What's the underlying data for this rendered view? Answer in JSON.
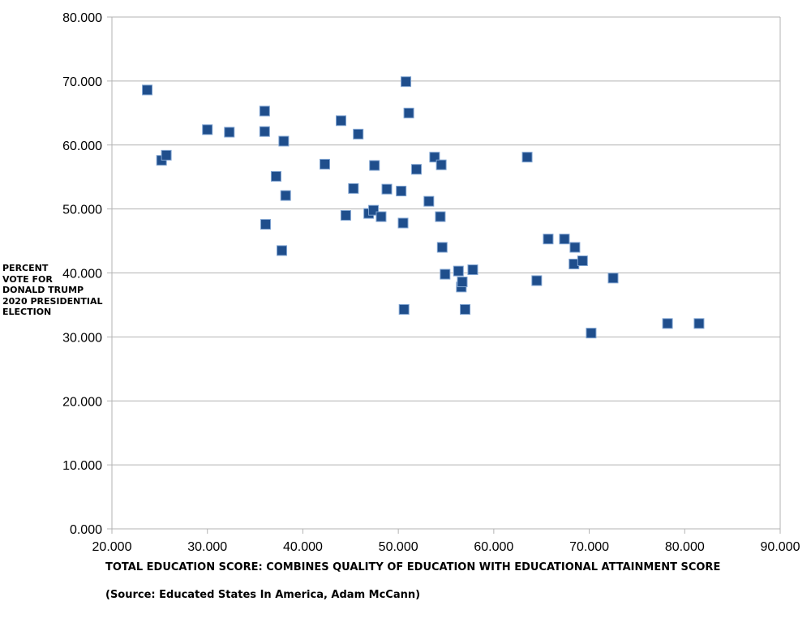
{
  "chart_data": {
    "type": "scatter",
    "title": "",
    "xlabel": "TOTAL EDUCATION SCORE: COMBINES QUALITY OF EDUCATION WITH EDUCATIONAL ATTAINMENT SCORE",
    "source": "(Source: Educated States In America, Adam McCann)",
    "ylabel_lines": [
      "PERCENT",
      "VOTE FOR",
      "DONALD TRUMP",
      "2020 PRESIDENTIAL",
      "ELECTION"
    ],
    "xlim": [
      20,
      90
    ],
    "ylim": [
      0,
      80
    ],
    "x_ticks": [
      "20.000",
      "30.000",
      "40.000",
      "50.000",
      "60.000",
      "70.000",
      "80.000",
      "90.000"
    ],
    "y_ticks": [
      "0.000",
      "10.000",
      "20.000",
      "30.000",
      "40.000",
      "50.000",
      "60.000",
      "70.000",
      "80.000"
    ],
    "grid": "horizontal",
    "marker_color": "#1f4e8c",
    "points": [
      {
        "x": 23.7,
        "y": 68.6
      },
      {
        "x": 25.2,
        "y": 57.6
      },
      {
        "x": 25.7,
        "y": 58.4
      },
      {
        "x": 30.0,
        "y": 62.4
      },
      {
        "x": 32.3,
        "y": 62.0
      },
      {
        "x": 36.0,
        "y": 65.3
      },
      {
        "x": 36.0,
        "y": 62.1
      },
      {
        "x": 36.1,
        "y": 47.6
      },
      {
        "x": 37.2,
        "y": 55.1
      },
      {
        "x": 37.8,
        "y": 43.5
      },
      {
        "x": 38.0,
        "y": 60.6
      },
      {
        "x": 38.2,
        "y": 52.1
      },
      {
        "x": 42.3,
        "y": 57.0
      },
      {
        "x": 44.0,
        "y": 63.8
      },
      {
        "x": 44.5,
        "y": 49.0
      },
      {
        "x": 45.3,
        "y": 53.2
      },
      {
        "x": 45.8,
        "y": 61.7
      },
      {
        "x": 46.9,
        "y": 49.3
      },
      {
        "x": 47.4,
        "y": 49.8
      },
      {
        "x": 47.5,
        "y": 56.8
      },
      {
        "x": 48.2,
        "y": 48.8
      },
      {
        "x": 48.8,
        "y": 53.1
      },
      {
        "x": 50.3,
        "y": 52.8
      },
      {
        "x": 50.5,
        "y": 47.8
      },
      {
        "x": 50.6,
        "y": 34.3
      },
      {
        "x": 50.8,
        "y": 69.9
      },
      {
        "x": 51.1,
        "y": 65.0
      },
      {
        "x": 51.9,
        "y": 56.2
      },
      {
        "x": 53.2,
        "y": 51.2
      },
      {
        "x": 53.8,
        "y": 58.1
      },
      {
        "x": 54.4,
        "y": 48.8
      },
      {
        "x": 54.5,
        "y": 56.9
      },
      {
        "x": 54.6,
        "y": 44.0
      },
      {
        "x": 54.9,
        "y": 39.8
      },
      {
        "x": 56.3,
        "y": 40.3
      },
      {
        "x": 56.6,
        "y": 37.8
      },
      {
        "x": 56.7,
        "y": 38.6
      },
      {
        "x": 57.0,
        "y": 34.3
      },
      {
        "x": 57.8,
        "y": 40.5
      },
      {
        "x": 63.5,
        "y": 58.1
      },
      {
        "x": 64.5,
        "y": 38.8
      },
      {
        "x": 65.7,
        "y": 45.3
      },
      {
        "x": 67.4,
        "y": 45.3
      },
      {
        "x": 68.4,
        "y": 41.4
      },
      {
        "x": 68.5,
        "y": 44.0
      },
      {
        "x": 69.3,
        "y": 41.9
      },
      {
        "x": 70.2,
        "y": 30.6
      },
      {
        "x": 72.5,
        "y": 39.2
      },
      {
        "x": 78.2,
        "y": 32.1
      },
      {
        "x": 81.5,
        "y": 32.1
      }
    ]
  }
}
